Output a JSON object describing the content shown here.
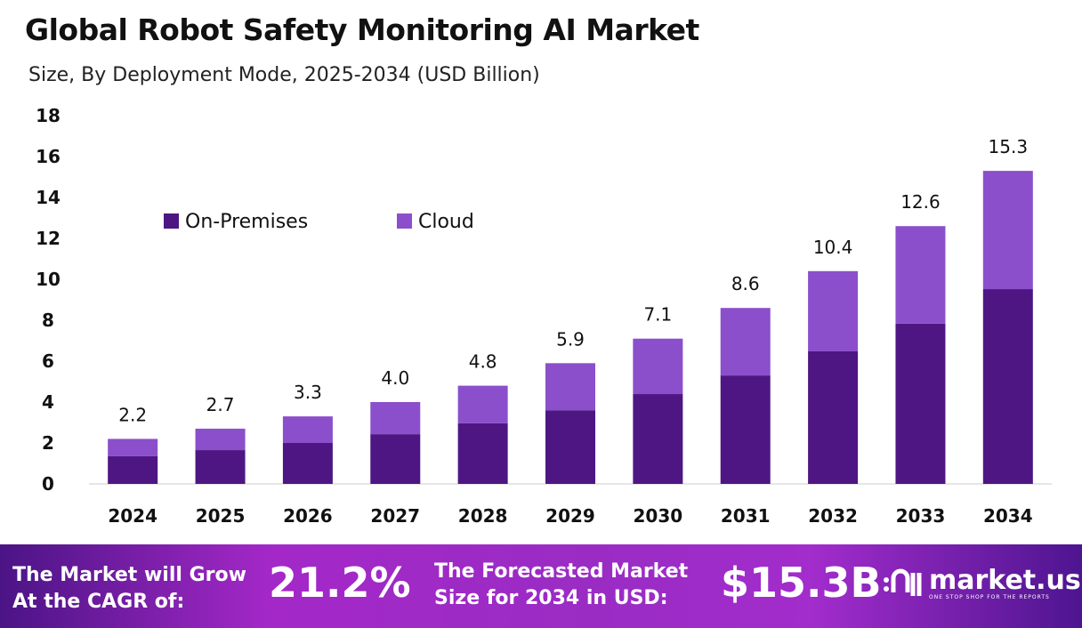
{
  "chart_data": {
    "type": "bar",
    "stacked": true,
    "title": "Global Robot Safety Monitoring AI Market",
    "subtitle": "Size, By Deployment Mode, 2025-2034 (USD Billion)",
    "categories": [
      "2024",
      "2025",
      "2026",
      "2027",
      "2028",
      "2029",
      "2030",
      "2031",
      "2032",
      "2033",
      "2034"
    ],
    "series": [
      {
        "name": "On-Premises",
        "color": "#4E1682",
        "values": [
          1.35,
          1.65,
          2.0,
          2.43,
          2.96,
          3.6,
          4.39,
          5.3,
          6.48,
          7.83,
          9.52
        ]
      },
      {
        "name": "Cloud",
        "color": "#8B4FCB",
        "values": [
          0.85,
          1.05,
          1.3,
          1.57,
          1.84,
          2.3,
          2.71,
          3.3,
          3.92,
          4.77,
          5.78
        ]
      }
    ],
    "totals": [
      "2.2",
      "2.7",
      "3.3",
      "4.0",
      "4.8",
      "5.9",
      "7.1",
      "8.6",
      "10.4",
      "12.6",
      "15.3"
    ],
    "ylim": [
      0,
      18
    ],
    "yticks": [
      "0",
      "2",
      "4",
      "6",
      "8",
      "10",
      "12",
      "14",
      "16",
      "18"
    ],
    "grid": false,
    "legend_position": "top-left"
  },
  "footer": {
    "cagr_label": [
      "The Market will Grow",
      "At the CAGR of:"
    ],
    "cagr_value": "21.2%",
    "forecast_label": [
      "The Forecasted Market",
      "Size for 2034 in USD:"
    ],
    "forecast_value": "$15.3B",
    "logo_text": "market.us",
    "logo_tagline": "ONE STOP SHOP FOR THE REPORTS"
  }
}
